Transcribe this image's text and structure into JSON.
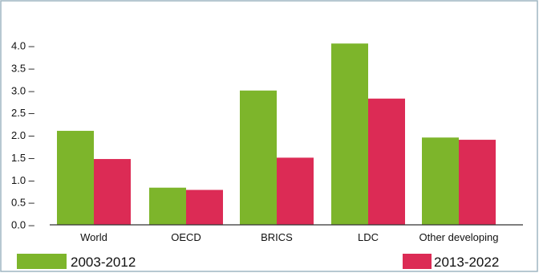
{
  "chart_data": {
    "type": "bar",
    "categories": [
      "World",
      "OECD",
      "BRICS",
      "LDC",
      "Other developing"
    ],
    "series": [
      {
        "name": "2003-2012",
        "color": "#7db52b",
        "values": [
          2.1,
          0.83,
          3.0,
          4.05,
          1.95
        ]
      },
      {
        "name": "2013-2022",
        "color": "#dc2b55",
        "values": [
          1.47,
          0.78,
          1.5,
          2.82,
          1.9
        ]
      }
    ],
    "yticks": [
      "0.0",
      "0.5",
      "1.0",
      "1.5",
      "2.0",
      "2.5",
      "3.0",
      "3.5",
      "4.0"
    ],
    "ylim": [
      0,
      4.0
    ],
    "title": "",
    "xlabel": "",
    "ylabel": "",
    "grid": false,
    "legend": "bottom"
  },
  "colors": {
    "frame_border": "#9fb6c2",
    "axis": "#333333"
  }
}
